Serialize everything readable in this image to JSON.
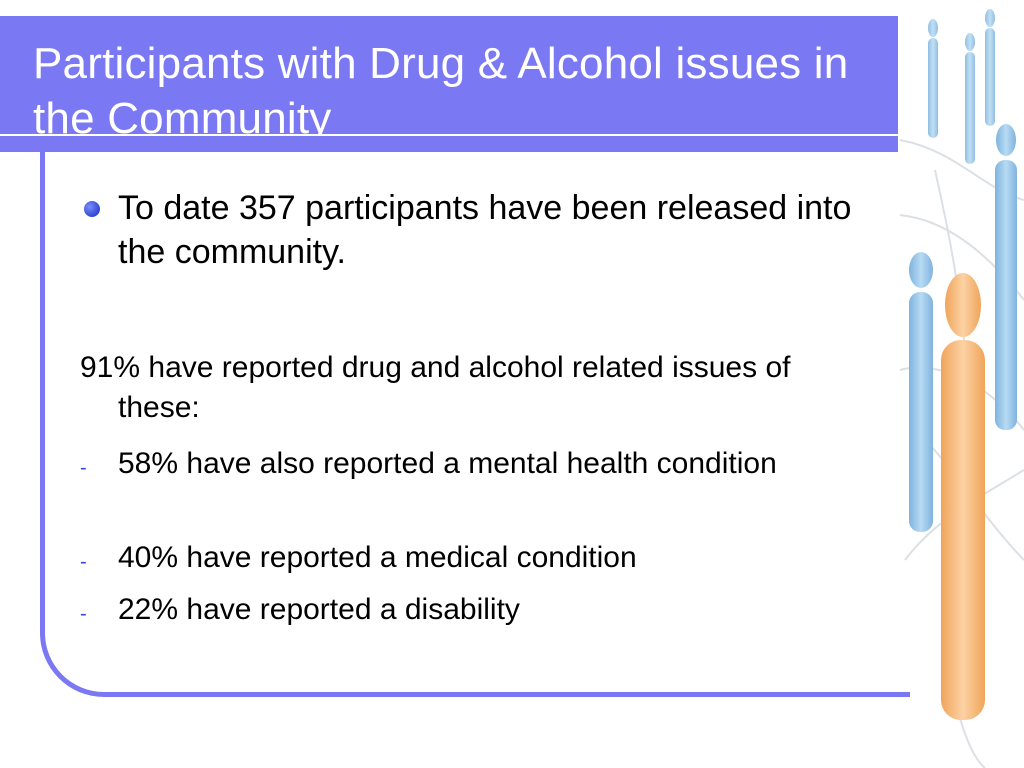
{
  "slide": {
    "title": "Participants with Drug & Alcohol issues in the Community",
    "bullet_main": "To date 357 participants have been released into the community.",
    "paragraph": "91% have reported drug and alcohol related issues of these:",
    "sub_items": [
      "58% have also reported a mental health condition",
      "40% have reported a medical condition",
      "22% have reported a disability"
    ]
  },
  "colors": {
    "accent": "#7b78f4",
    "bullet": "#2f47d6",
    "person_highlight": "#f4b57a",
    "people": "#9cc7e6"
  },
  "icons": {
    "bullet": "filled-circle-bullet",
    "sub_bullet": "dash",
    "decoration": "people-network-illustration"
  }
}
